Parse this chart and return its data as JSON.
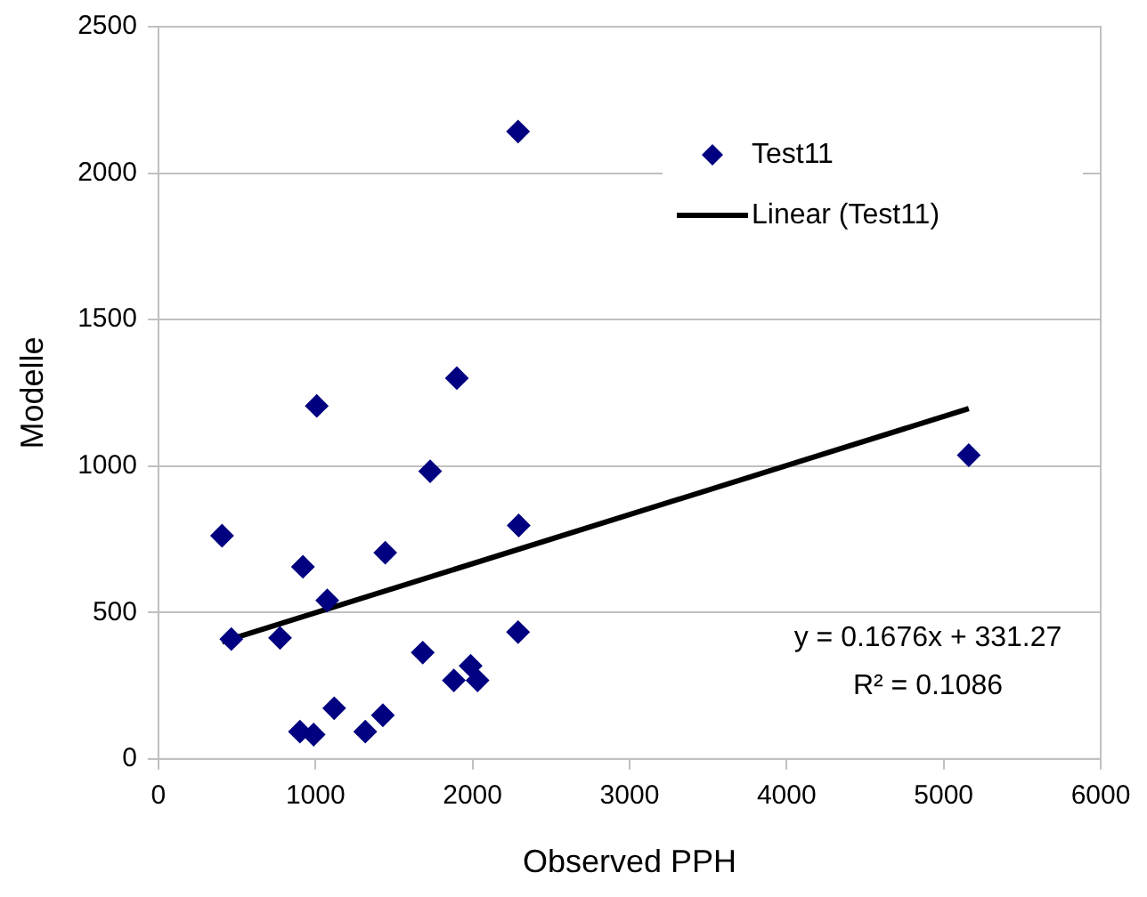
{
  "chart_data": {
    "type": "scatter",
    "xlabel": "Observed PPH",
    "ylabel": "Modelle",
    "xlim": [
      0,
      6000
    ],
    "xticks": [
      0,
      1000,
      2000,
      3000,
      4000,
      5000,
      6000
    ],
    "ylim": [
      0,
      2500
    ],
    "yticks": [
      0,
      500,
      1000,
      1500,
      2000,
      2500
    ],
    "grid": "y",
    "legend": "top right",
    "marker": "diamond",
    "series": [
      {
        "name": "Test11",
        "color": "#000080",
        "x": [
          2290,
          1900,
          1008,
          1730,
          405,
          2294,
          920,
          1444,
          1075,
          464,
          774,
          2290,
          1683,
          1988,
          1881,
          2032,
          1119,
          1429,
          901,
          988,
          1317,
          5160
        ],
        "values": [
          2142,
          1300,
          1205,
          982,
          762,
          797,
          656,
          704,
          541,
          409,
          413,
          433,
          363,
          318,
          268,
          268,
          173,
          149,
          93,
          83,
          93,
          1037
        ]
      },
      {
        "name": "Linear (Test11)",
        "type": "line",
        "color": "#000000",
        "marker": "none",
        "x": [
          405,
          5160
        ],
        "values": [
          399.2,
          1196.1
        ]
      }
    ],
    "annotations": [
      "y = 0.1676x + 331.27",
      "R² = 0.1086"
    ]
  }
}
